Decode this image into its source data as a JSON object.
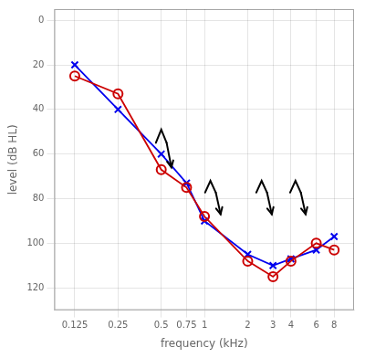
{
  "chart_data": {
    "type": "line",
    "x": [
      0.125,
      0.25,
      0.5,
      0.75,
      1,
      2,
      3,
      4,
      6,
      8
    ],
    "series": [
      {
        "color": "#cc0000",
        "marker": "circle",
        "line_style": "solid",
        "values": [
          25,
          33,
          67,
          75,
          88,
          108,
          115,
          108,
          100,
          103
        ]
      },
      {
        "color": "#0000ee",
        "marker": "x",
        "line_style": "solid",
        "values": [
          20,
          40,
          60,
          73,
          90,
          105,
          110,
          107,
          103,
          97
        ]
      }
    ],
    "xlabel": "frequency (kHz)",
    "ylabel": "level (dB HL)",
    "log": "x",
    "xlim": [
      0.09,
      11
    ],
    "xticks": [
      0.125,
      0.25,
      0.5,
      0.75,
      1,
      2,
      3,
      4,
      6,
      8
    ],
    "ylim": [
      130,
      -5
    ],
    "yticks": [
      0,
      20,
      40,
      60,
      80,
      100,
      120
    ],
    "grid": true,
    "arrows": [
      {
        "x": 0.5,
        "y_top": 49,
        "y_bot": 66
      },
      {
        "x": 1.1,
        "y_top": 72,
        "y_bot": 87
      },
      {
        "x": 2.5,
        "y_top": 72,
        "y_bot": 87
      },
      {
        "x": 4.3,
        "y_top": 72,
        "y_bot": 87
      }
    ]
  }
}
